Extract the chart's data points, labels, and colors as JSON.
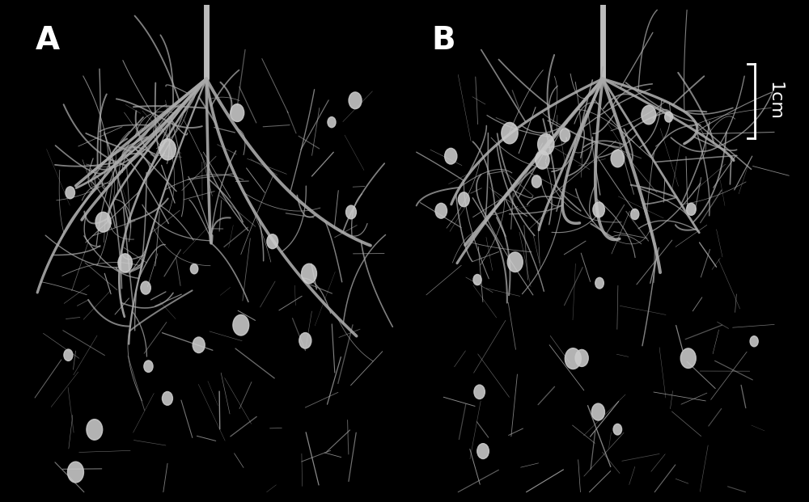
{
  "background_color": "#000000",
  "panel_A_label": "A",
  "panel_B_label": "B",
  "scale_bar_label": "1cm",
  "label_color": "#ffffff",
  "label_fontsize": 28,
  "scale_bar_fontsize": 16,
  "fig_width": 10.0,
  "fig_height": 6.21,
  "dpi": 100,
  "num_roots_A": 120,
  "num_roots_B": 130,
  "num_nodules_A": 20,
  "num_nodules_B": 25,
  "root_color": "#aaaaaa",
  "nodule_color": "#cccccc",
  "stem_color": "#bbbbbb"
}
